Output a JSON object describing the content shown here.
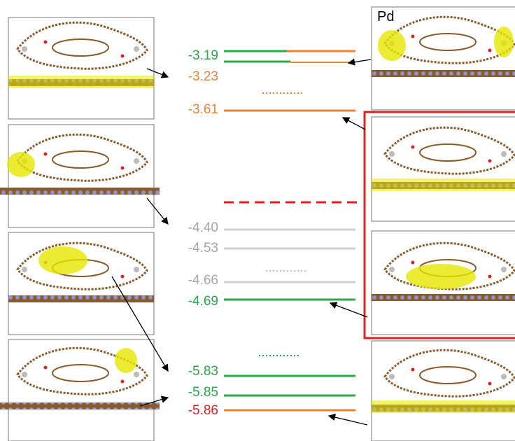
{
  "panel_label": "Pd",
  "levels": [
    {
      "label": "-3.19",
      "color": "#2aa84a",
      "line_color": "#2aa84a"
    },
    {
      "label": "-3.23",
      "color": "#e8833a",
      "line_color": "#e8833a"
    },
    {
      "label": "-3.61",
      "color": "#e8833a",
      "line_color": "#e8833a"
    },
    {
      "label": "-4.40",
      "color": "#a6a6a6",
      "line_color": "#d0d0d0"
    },
    {
      "label": "-4.53",
      "color": "#a6a6a6",
      "line_color": "#d0d0d0"
    },
    {
      "label": "-4.66",
      "color": "#a6a6a6",
      "line_color": "#d0d0d0"
    },
    {
      "label": "-4.69",
      "color": "#2aa84a",
      "line_color": "#2aa84a"
    },
    {
      "label": "-5.83",
      "color": "#2aa84a",
      "line_color": "#2aa84a"
    },
    {
      "label": "-5.85",
      "color": "#2aa84a",
      "line_color": "#2aa84a"
    },
    {
      "label": "-5.86",
      "color": "#e02020",
      "line_color": "#e8833a"
    }
  ]
}
